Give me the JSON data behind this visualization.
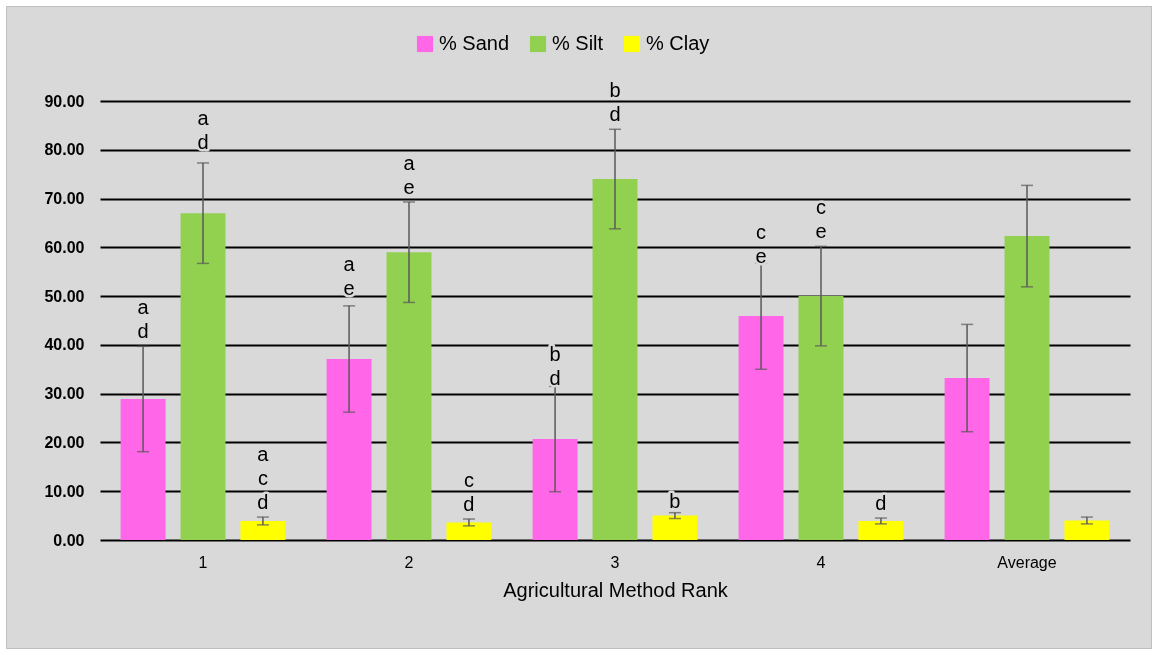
{
  "chart_data": {
    "type": "bar",
    "xlabel": "Agricultural Method Rank",
    "categories": [
      "1",
      "2",
      "3",
      "4",
      "Average"
    ],
    "series": [
      {
        "name": "% Sand",
        "color": "#ff66e8",
        "values": [
          28.9,
          37.1,
          20.7,
          45.9,
          33.2
        ],
        "errors": [
          10.8,
          10.9,
          10.8,
          10.9,
          11.0
        ],
        "value_labels": [
          "a\nd",
          "a\ne",
          "b\nd",
          "c\ne",
          null
        ]
      },
      {
        "name": "% Silt",
        "color": "#92d050",
        "values": [
          67.0,
          59.0,
          74.0,
          50.0,
          62.3
        ],
        "errors": [
          10.3,
          10.3,
          10.2,
          10.2,
          10.4
        ],
        "value_labels": [
          "a\nd",
          "a\ne",
          "b\nd",
          "c\ne",
          null
        ]
      },
      {
        "name": "% Clay",
        "color": "#ffff00",
        "values": [
          3.9,
          3.6,
          5.0,
          3.9,
          4.0
        ],
        "errors": [
          0.8,
          0.7,
          0.6,
          0.6,
          0.7
        ],
        "value_labels": [
          "a\nc\nd",
          "c\nd",
          "b",
          "d",
          null
        ]
      }
    ],
    "ylim": [
      0,
      90
    ],
    "yticks": [
      {
        "value": 0,
        "label": "0.00"
      },
      {
        "value": 10,
        "label": "10.00"
      },
      {
        "value": 20,
        "label": "20.00"
      },
      {
        "value": 30,
        "label": "30.00"
      },
      {
        "value": 40,
        "label": "40.00"
      },
      {
        "value": 50,
        "label": "50.00"
      },
      {
        "value": 60,
        "label": "60.00"
      },
      {
        "value": 70,
        "label": "70.00"
      },
      {
        "value": 80,
        "label": "80.00"
      },
      {
        "value": 90,
        "label": "90.00"
      }
    ],
    "grid": "y",
    "legend": "top"
  }
}
